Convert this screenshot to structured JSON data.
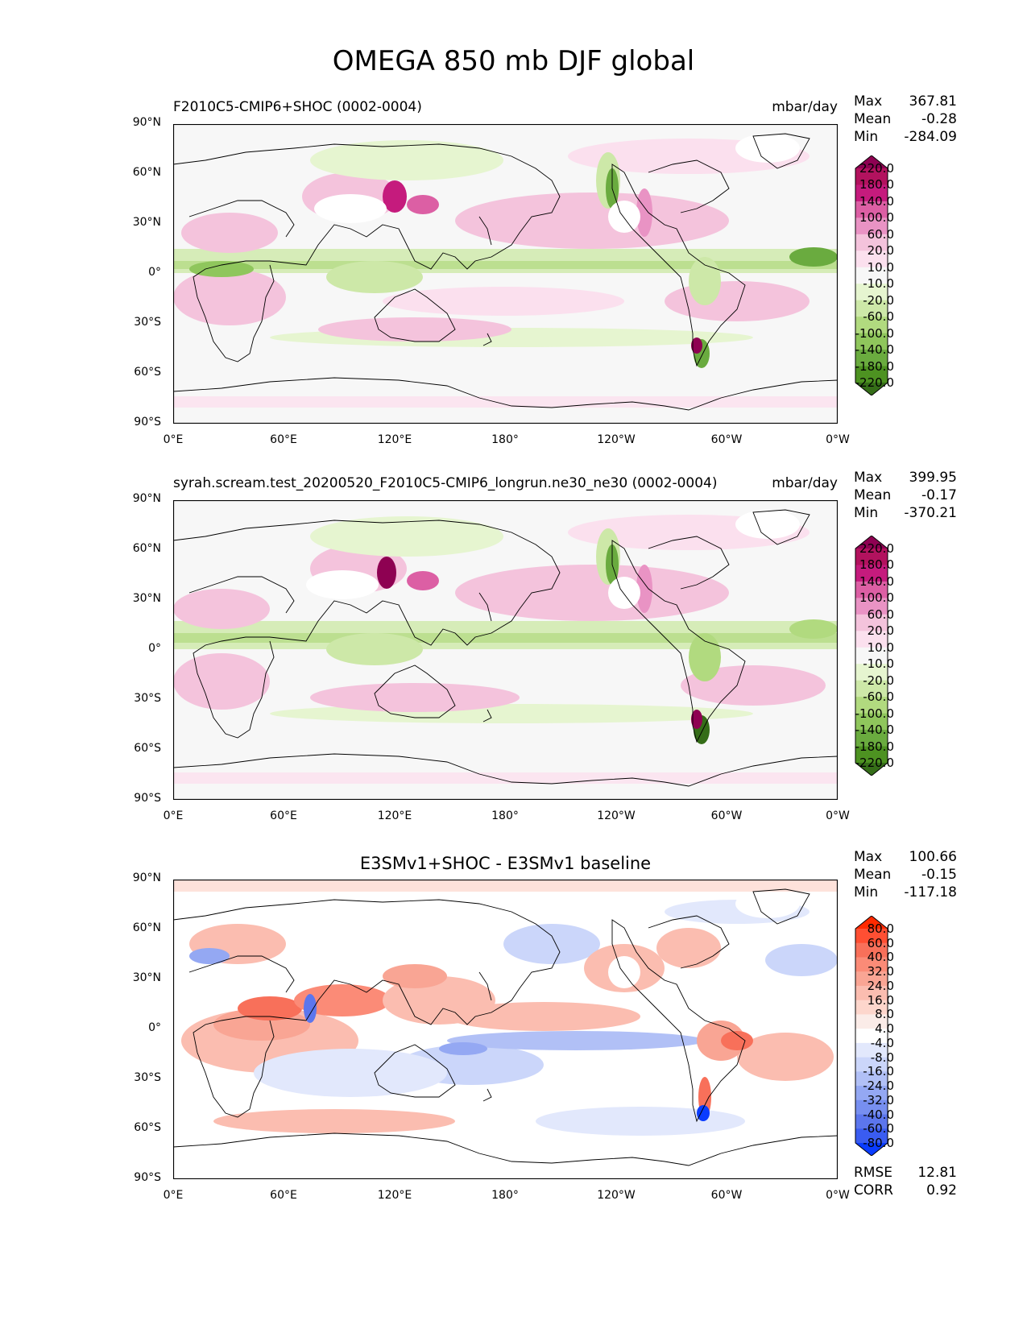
{
  "title": "OMEGA 850 mb DJF global",
  "axes": {
    "y_ticks": [
      "90°N",
      "60°N",
      "30°N",
      "0°",
      "30°S",
      "60°S",
      "90°S"
    ],
    "x_ticks": [
      "0°E",
      "60°E",
      "120°E",
      "180°",
      "120°W",
      "60°W",
      "0°W"
    ]
  },
  "colors": {
    "main_levels": [
      "#8e0152",
      "#b2125e",
      "#c51b7d",
      "#dc5fa4",
      "#e993c4",
      "#f4c3dc",
      "#fbe0ee",
      "#f7f7f7",
      "#e6f5d0",
      "#cde8a8",
      "#b1da7f",
      "#8fc65c",
      "#6aab3f",
      "#4d9221",
      "#356d18"
    ],
    "diff_levels": [
      "#ff2a00",
      "#ff4f33",
      "#f8705a",
      "#fb8b77",
      "#f9a594",
      "#fbbdb0",
      "#fdd6cc",
      "#fbece8",
      "#ffffff",
      "#e2e8fc",
      "#cbd6fa",
      "#b1c0f6",
      "#94a8f3",
      "#778ff0",
      "#5c76ed",
      "#3a5cf0",
      "#0a3cff"
    ]
  },
  "panels": [
    {
      "label_left": "F2010C5-CMIP6+SHOC (0002-0004)",
      "units": "mbar/day",
      "stats": [
        {
          "key": "Max",
          "value": "367.81"
        },
        {
          "key": "Mean",
          "value": "-0.28"
        },
        {
          "key": "Min",
          "value": "-284.09"
        }
      ],
      "colorbar_labels": [
        "220.0",
        "180.0",
        "140.0",
        "100.0",
        "60.0",
        "20.0",
        "10.0",
        "-10.0",
        "-20.0",
        "-60.0",
        "-100.0",
        "-140.0",
        "-180.0",
        "-220.0"
      ]
    },
    {
      "label_left": "syrah.scream.test_20200520_F2010C5-CMIP6_longrun.ne30_ne30 (0002-0004)",
      "units": "mbar/day",
      "stats": [
        {
          "key": "Max",
          "value": "399.95"
        },
        {
          "key": "Mean",
          "value": "-0.17"
        },
        {
          "key": "Min",
          "value": "-370.21"
        }
      ],
      "colorbar_labels": [
        "220.0",
        "180.0",
        "140.0",
        "100.0",
        "60.0",
        "20.0",
        "10.0",
        "-10.0",
        "-20.0",
        "-60.0",
        "-100.0",
        "-140.0",
        "-180.0",
        "-220.0"
      ]
    },
    {
      "title": "E3SMv1+SHOC - E3SMv1 baseline",
      "stats": [
        {
          "key": "Max",
          "value": "100.66"
        },
        {
          "key": "Mean",
          "value": "-0.15"
        },
        {
          "key": "Min",
          "value": "-117.18"
        }
      ],
      "colorbar_labels": [
        "80.0",
        "60.0",
        "40.0",
        "32.0",
        "24.0",
        "16.0",
        "8.0",
        "4.0",
        "-4.0",
        "-8.0",
        "-16.0",
        "-24.0",
        "-32.0",
        "-40.0",
        "-60.0",
        "-80.0"
      ],
      "metrics": [
        {
          "key": "RMSE",
          "value": "12.81"
        },
        {
          "key": "CORR",
          "value": "0.92"
        }
      ]
    }
  ]
}
